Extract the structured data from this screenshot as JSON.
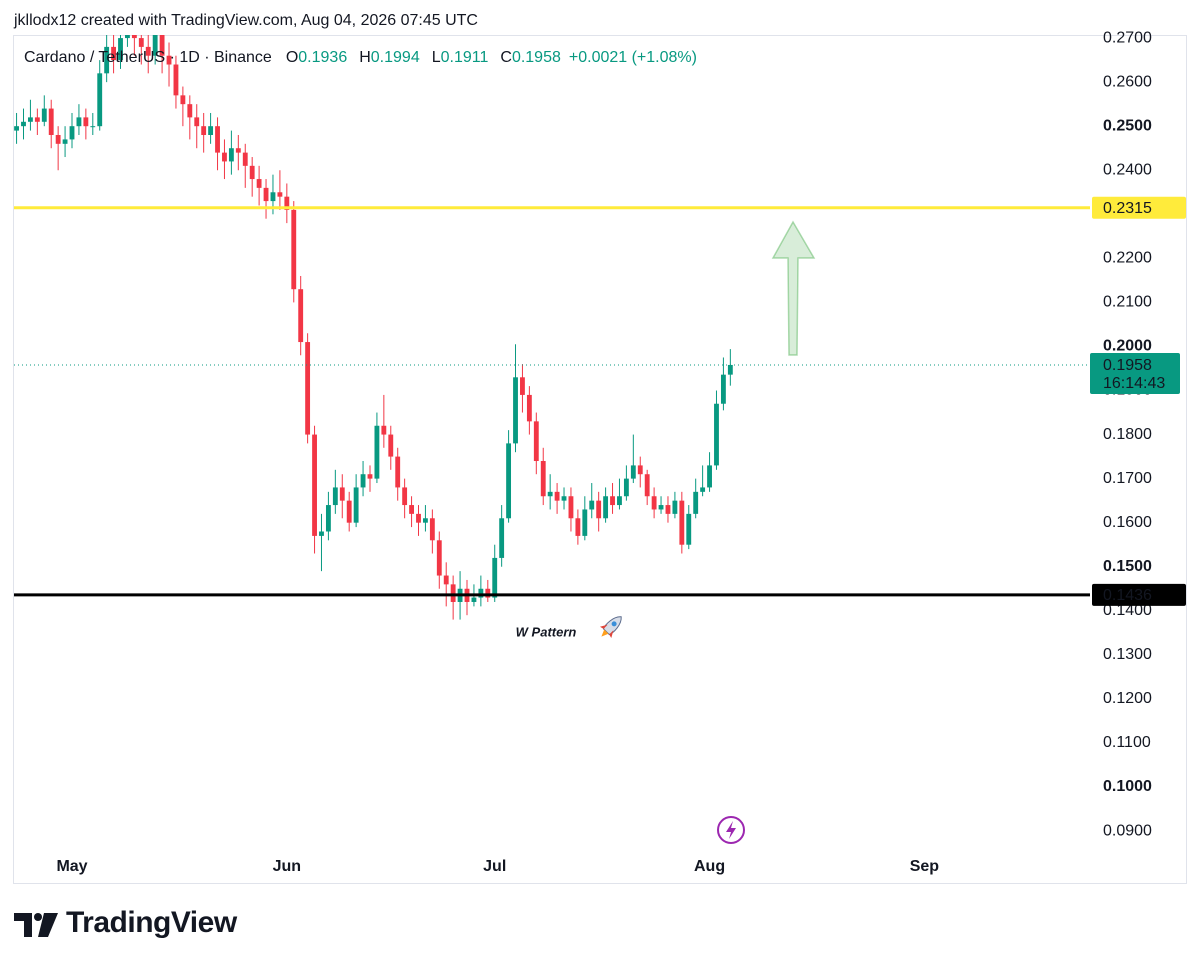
{
  "header": {
    "credit": "jkllodx12 created with TradingView.com, Aug 04, 2026 07:45 UTC"
  },
  "footer": {
    "brand": "TradingView"
  },
  "chart_data": {
    "type": "candlestick",
    "symbol": "Cardano / TetherUS · 1D · Binance",
    "legend_keys": [
      "O",
      "H",
      "L",
      "C"
    ],
    "change_label": "+0.0021 (+1.08%)",
    "countdown": "16:14:43",
    "up_color": "#089981",
    "down_color": "#f23645",
    "grid": false,
    "xlim": [
      -0.37,
      154.9
    ],
    "ylim": [
      0.0857,
      0.2707
    ],
    "xticks": [
      {
        "value": 8,
        "label": "May"
      },
      {
        "value": 39,
        "label": "Jun"
      },
      {
        "value": 69,
        "label": "Jul"
      },
      {
        "value": 100,
        "label": "Aug"
      },
      {
        "value": 131,
        "label": "Sep"
      }
    ],
    "yticks": [
      {
        "value": 0.09,
        "label": "0.0900"
      },
      {
        "value": 0.1,
        "label": "0.1000",
        "bold": true
      },
      {
        "value": 0.11,
        "label": "0.1100"
      },
      {
        "value": 0.12,
        "label": "0.1200"
      },
      {
        "value": 0.13,
        "label": "0.1300"
      },
      {
        "value": 0.14,
        "label": "0.1400"
      },
      {
        "value": 0.15,
        "label": "0.1500",
        "bold": true
      },
      {
        "value": 0.16,
        "label": "0.1600"
      },
      {
        "value": 0.17,
        "label": "0.1700"
      },
      {
        "value": 0.18,
        "label": "0.1800"
      },
      {
        "value": 0.19,
        "label": "0.1900"
      },
      {
        "value": 0.2,
        "label": "0.2000",
        "bold": true
      },
      {
        "value": 0.21,
        "label": "0.2100"
      },
      {
        "value": 0.22,
        "label": "0.2200"
      },
      {
        "value": 0.23,
        "label": "0.2300"
      },
      {
        "value": 0.24,
        "label": "0.2400"
      },
      {
        "value": 0.25,
        "label": "0.2500",
        "bold": true
      },
      {
        "value": 0.26,
        "label": "0.2600"
      },
      {
        "value": 0.27,
        "label": "0.2700"
      }
    ],
    "hlines": [
      {
        "value": 0.2315,
        "color": "#ffeb3b",
        "text_color": "#131722"
      },
      {
        "value": 0.1436,
        "color": "#000000",
        "text_color": "#ffffff"
      }
    ],
    "annotations": [
      {
        "text": "W Pattern"
      }
    ],
    "open": [
      0.249,
      0.25,
      0.251,
      0.252,
      0.251,
      0.254,
      0.248,
      0.246,
      0.247,
      0.25,
      0.252,
      0.25,
      0.25,
      0.262,
      0.268,
      0.265,
      0.27,
      0.272,
      0.27,
      0.268,
      0.266,
      0.272,
      0.266,
      0.264,
      0.257,
      0.255,
      0.252,
      0.25,
      0.248,
      0.25,
      0.244,
      0.242,
      0.245,
      0.244,
      0.241,
      0.238,
      0.236,
      0.233,
      0.235,
      0.234,
      0.231,
      0.213,
      0.201,
      0.18,
      0.157,
      0.158,
      0.164,
      0.168,
      0.165,
      0.16,
      0.168,
      0.171,
      0.17,
      0.182,
      0.18,
      0.175,
      0.168,
      0.164,
      0.162,
      0.16,
      0.161,
      0.156,
      0.148,
      0.146,
      0.142,
      0.145,
      0.142,
      0.143,
      0.145,
      0.143,
      0.152,
      0.161,
      0.178,
      0.193,
      0.189,
      0.183,
      0.174,
      0.166,
      0.167,
      0.165,
      0.166,
      0.161,
      0.157,
      0.163,
      0.165,
      0.161,
      0.166,
      0.164,
      0.166,
      0.17,
      0.173,
      0.171,
      0.166,
      0.163,
      0.164,
      0.162,
      0.165,
      0.155,
      0.162,
      0.167,
      0.168,
      0.173,
      0.187,
      0.1936
    ],
    "high": [
      0.253,
      0.254,
      0.256,
      0.254,
      0.257,
      0.256,
      0.25,
      0.25,
      0.253,
      0.255,
      0.254,
      0.253,
      0.265,
      0.272,
      0.271,
      0.274,
      0.276,
      0.274,
      0.273,
      0.271,
      0.275,
      0.274,
      0.269,
      0.266,
      0.259,
      0.257,
      0.255,
      0.253,
      0.253,
      0.252,
      0.247,
      0.249,
      0.248,
      0.246,
      0.243,
      0.241,
      0.238,
      0.239,
      0.24,
      0.237,
      0.233,
      0.216,
      0.203,
      0.182,
      0.162,
      0.167,
      0.172,
      0.171,
      0.167,
      0.171,
      0.174,
      0.173,
      0.185,
      0.189,
      0.182,
      0.177,
      0.17,
      0.166,
      0.164,
      0.164,
      0.163,
      0.158,
      0.151,
      0.148,
      0.149,
      0.147,
      0.146,
      0.148,
      0.147,
      0.155,
      0.164,
      0.181,
      0.2005,
      0.196,
      0.191,
      0.185,
      0.177,
      0.171,
      0.169,
      0.168,
      0.168,
      0.163,
      0.166,
      0.169,
      0.167,
      0.168,
      0.169,
      0.17,
      0.173,
      0.18,
      0.175,
      0.172,
      0.168,
      0.166,
      0.166,
      0.167,
      0.167,
      0.164,
      0.17,
      0.173,
      0.176,
      0.19,
      0.1975,
      0.1994
    ],
    "low": [
      0.246,
      0.247,
      0.249,
      0.248,
      0.25,
      0.245,
      0.24,
      0.243,
      0.245,
      0.248,
      0.247,
      0.248,
      0.249,
      0.26,
      0.262,
      0.263,
      0.268,
      0.266,
      0.264,
      0.262,
      0.264,
      0.262,
      0.259,
      0.254,
      0.25,
      0.247,
      0.245,
      0.244,
      0.246,
      0.24,
      0.238,
      0.239,
      0.24,
      0.236,
      0.234,
      0.232,
      0.229,
      0.23,
      0.231,
      0.228,
      0.21,
      0.198,
      0.178,
      0.153,
      0.149,
      0.156,
      0.162,
      0.161,
      0.158,
      0.159,
      0.166,
      0.167,
      0.169,
      0.177,
      0.172,
      0.165,
      0.161,
      0.159,
      0.157,
      0.158,
      0.153,
      0.145,
      0.141,
      0.138,
      0.138,
      0.139,
      0.141,
      0.141,
      0.142,
      0.142,
      0.15,
      0.16,
      0.176,
      0.185,
      0.18,
      0.171,
      0.164,
      0.163,
      0.162,
      0.163,
      0.158,
      0.155,
      0.156,
      0.161,
      0.158,
      0.16,
      0.162,
      0.163,
      0.165,
      0.169,
      0.168,
      0.164,
      0.161,
      0.162,
      0.16,
      0.161,
      0.153,
      0.154,
      0.161,
      0.166,
      0.167,
      0.172,
      0.1855,
      0.1911
    ],
    "close": [
      0.25,
      0.251,
      0.252,
      0.251,
      0.254,
      0.248,
      0.246,
      0.247,
      0.25,
      0.252,
      0.25,
      0.25,
      0.262,
      0.268,
      0.265,
      0.27,
      0.272,
      0.27,
      0.268,
      0.266,
      0.272,
      0.266,
      0.264,
      0.257,
      0.255,
      0.252,
      0.25,
      0.248,
      0.25,
      0.244,
      0.242,
      0.245,
      0.244,
      0.241,
      0.238,
      0.236,
      0.233,
      0.235,
      0.234,
      0.231,
      0.213,
      0.201,
      0.18,
      0.157,
      0.158,
      0.164,
      0.168,
      0.165,
      0.16,
      0.168,
      0.171,
      0.17,
      0.182,
      0.18,
      0.175,
      0.168,
      0.164,
      0.162,
      0.16,
      0.161,
      0.156,
      0.148,
      0.146,
      0.142,
      0.145,
      0.142,
      0.143,
      0.145,
      0.143,
      0.152,
      0.161,
      0.178,
      0.193,
      0.189,
      0.183,
      0.174,
      0.166,
      0.167,
      0.165,
      0.166,
      0.161,
      0.157,
      0.163,
      0.165,
      0.161,
      0.166,
      0.164,
      0.166,
      0.17,
      0.173,
      0.171,
      0.166,
      0.163,
      0.164,
      0.162,
      0.165,
      0.155,
      0.162,
      0.167,
      0.168,
      0.173,
      0.187,
      0.1936,
      0.1958
    ]
  }
}
